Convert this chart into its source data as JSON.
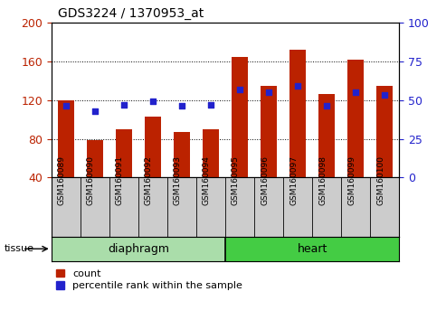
{
  "title": "GDS3224 / 1370953_at",
  "samples": [
    "GSM160089",
    "GSM160090",
    "GSM160091",
    "GSM160092",
    "GSM160093",
    "GSM160094",
    "GSM160095",
    "GSM160096",
    "GSM160097",
    "GSM160098",
    "GSM160099",
    "GSM160100"
  ],
  "count_values": [
    120,
    79,
    90,
    103,
    87,
    90,
    164,
    135,
    172,
    126,
    162,
    135
  ],
  "percentile_values": [
    46,
    43,
    47,
    49,
    46,
    47,
    57,
    55,
    59,
    46,
    55,
    53
  ],
  "bar_color": "#bb2200",
  "percentile_color": "#2222cc",
  "ylim_left": [
    40,
    200
  ],
  "ylim_right": [
    0,
    100
  ],
  "yticks_left": [
    40,
    80,
    120,
    160,
    200
  ],
  "yticks_right": [
    0,
    25,
    50,
    75,
    100
  ],
  "groups": [
    {
      "label": "diaphragm",
      "start": 0,
      "end": 6,
      "color": "#aaddaa"
    },
    {
      "label": "heart",
      "start": 6,
      "end": 12,
      "color": "#44cc44"
    }
  ],
  "tissue_label": "tissue",
  "legend_count": "count",
  "legend_pct": "percentile rank within the sample",
  "bar_width": 0.55
}
